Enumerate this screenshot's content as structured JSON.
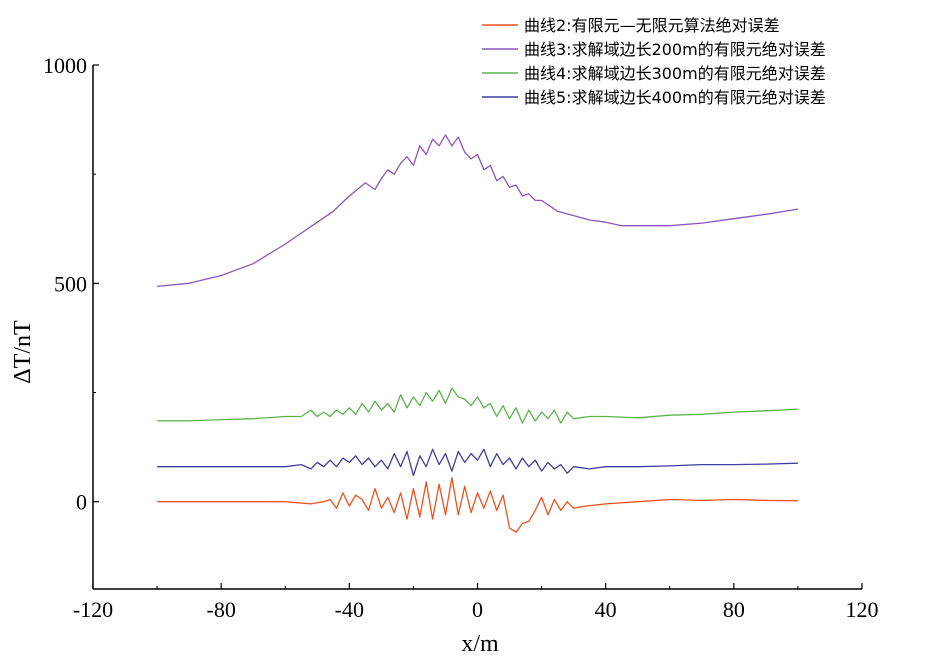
{
  "chart_data": {
    "type": "line",
    "xlabel": "x/m",
    "ylabel": "ΔT/nT",
    "xlim": [
      -120,
      120
    ],
    "ylim": [
      -200,
      1000
    ],
    "xticks": [
      -120,
      -80,
      -40,
      0,
      40,
      80,
      120
    ],
    "xtick_labels": [
      "-120",
      "-80",
      "-40",
      "0",
      "40",
      "80",
      "120"
    ],
    "yticks": [
      0,
      500,
      1000
    ],
    "ytick_labels": [
      "0",
      "500",
      "1000"
    ],
    "grid": false,
    "legend_position": "top-right",
    "series": [
      {
        "name": "曲线2:有限元—无限元算法绝对误差",
        "color": "#f0511e",
        "x": [
          -100,
          -90,
          -80,
          -70,
          -60,
          -52,
          -48,
          -46,
          -44,
          -42,
          -40,
          -38,
          -36,
          -34,
          -32,
          -30,
          -28,
          -26,
          -24,
          -22,
          -20,
          -18,
          -16,
          -14,
          -12,
          -10,
          -8,
          -6,
          -4,
          -2,
          0,
          2,
          4,
          6,
          8,
          10,
          12,
          14,
          16,
          18,
          20,
          22,
          24,
          26,
          28,
          30,
          34,
          40,
          50,
          60,
          70,
          80,
          90,
          100
        ],
        "values": [
          0,
          0,
          0,
          0,
          0,
          -5,
          0,
          5,
          -15,
          20,
          -10,
          15,
          5,
          -20,
          30,
          -15,
          10,
          -25,
          20,
          -40,
          30,
          -35,
          45,
          -40,
          40,
          -30,
          55,
          -30,
          35,
          -25,
          20,
          -15,
          25,
          -20,
          15,
          -60,
          -70,
          -50,
          -45,
          -20,
          10,
          -30,
          5,
          -20,
          0,
          -15,
          -10,
          -5,
          0,
          5,
          3,
          5,
          3,
          2
        ]
      },
      {
        "name": "曲线3:求解域边长200m的有限元绝对误差",
        "color": "#8b56c0",
        "x": [
          -100,
          -90,
          -80,
          -70,
          -60,
          -50,
          -45,
          -40,
          -35,
          -32,
          -30,
          -28,
          -26,
          -24,
          -22,
          -20,
          -18,
          -16,
          -14,
          -12,
          -10,
          -8,
          -6,
          -4,
          -2,
          0,
          2,
          4,
          6,
          8,
          10,
          12,
          14,
          16,
          18,
          20,
          25,
          30,
          35,
          40,
          45,
          50,
          60,
          70,
          80,
          90,
          100
        ],
        "values": [
          493,
          500,
          518,
          545,
          590,
          640,
          665,
          700,
          730,
          715,
          740,
          760,
          750,
          775,
          790,
          770,
          815,
          795,
          830,
          815,
          840,
          815,
          835,
          800,
          785,
          795,
          760,
          770,
          735,
          745,
          720,
          725,
          700,
          705,
          690,
          690,
          665,
          655,
          645,
          640,
          632,
          632,
          632,
          638,
          648,
          658,
          670
        ]
      },
      {
        "name": "曲线4:求解域边长300m的有限元绝对误差",
        "color": "#5cb34a",
        "x": [
          -100,
          -90,
          -80,
          -70,
          -60,
          -55,
          -52,
          -50,
          -48,
          -46,
          -44,
          -42,
          -40,
          -38,
          -36,
          -34,
          -32,
          -30,
          -28,
          -26,
          -24,
          -22,
          -20,
          -18,
          -16,
          -14,
          -12,
          -10,
          -8,
          -6,
          -4,
          -2,
          0,
          2,
          4,
          6,
          8,
          10,
          12,
          14,
          16,
          18,
          20,
          22,
          24,
          26,
          28,
          30,
          35,
          40,
          50,
          60,
          70,
          80,
          90,
          100
        ],
        "values": [
          185,
          185,
          188,
          190,
          195,
          195,
          210,
          195,
          205,
          195,
          210,
          200,
          215,
          200,
          225,
          205,
          230,
          210,
          225,
          205,
          245,
          215,
          240,
          220,
          250,
          230,
          255,
          225,
          260,
          240,
          235,
          220,
          240,
          215,
          225,
          195,
          220,
          190,
          215,
          180,
          210,
          185,
          205,
          190,
          210,
          180,
          205,
          190,
          195,
          195,
          192,
          198,
          200,
          205,
          208,
          212
        ]
      },
      {
        "name": "曲线5:求解域边长400m的有限元绝对误差",
        "color": "#3f3ea0",
        "x": [
          -100,
          -90,
          -80,
          -70,
          -60,
          -55,
          -52,
          -50,
          -48,
          -46,
          -44,
          -42,
          -40,
          -38,
          -36,
          -34,
          -32,
          -30,
          -28,
          -26,
          -24,
          -22,
          -20,
          -18,
          -16,
          -14,
          -12,
          -10,
          -8,
          -6,
          -4,
          -2,
          0,
          2,
          4,
          6,
          8,
          10,
          12,
          14,
          16,
          18,
          20,
          22,
          24,
          26,
          28,
          30,
          35,
          40,
          50,
          60,
          70,
          80,
          90,
          100
        ],
        "values": [
          80,
          80,
          80,
          80,
          80,
          85,
          75,
          90,
          80,
          95,
          80,
          100,
          90,
          105,
          85,
          100,
          80,
          95,
          75,
          110,
          80,
          115,
          60,
          105,
          80,
          120,
          85,
          110,
          70,
          115,
          90,
          110,
          95,
          120,
          80,
          110,
          85,
          100,
          75,
          100,
          80,
          95,
          70,
          90,
          75,
          85,
          65,
          80,
          75,
          80,
          80,
          82,
          85,
          85,
          86,
          88
        ]
      }
    ]
  }
}
